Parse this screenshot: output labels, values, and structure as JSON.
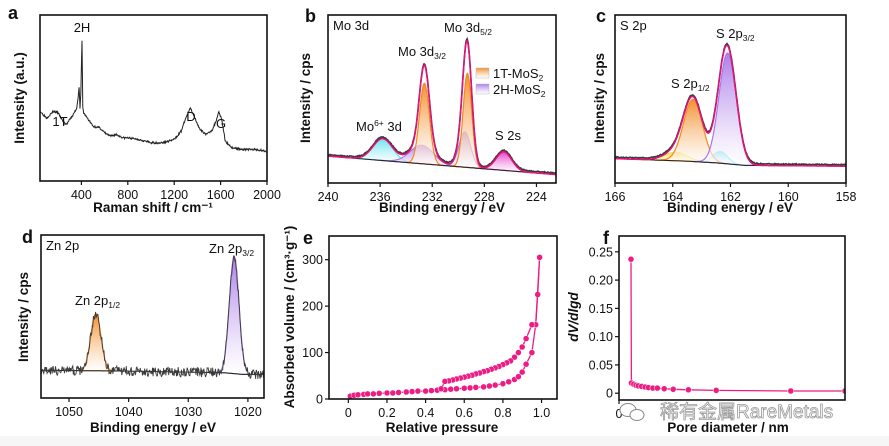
{
  "watermark": "稀有金属RareMetals",
  "colors": {
    "envelope": "#e8107a",
    "data": "#3a3a3a",
    "baseline": "#222222",
    "orange": "#f28a22",
    "purple": "#a878e8",
    "cyan": "#5fe3ec",
    "magenta": "#e23ccc",
    "yellow": "#efe24a",
    "pink": "#ec1c84"
  },
  "chart_data": [
    {
      "panel": "a",
      "type": "line",
      "xlabel": "Raman shift / cm⁻¹",
      "ylabel": "Intensity (a.u.)",
      "xlim": [
        43,
        2000
      ],
      "ylim": [
        0,
        1
      ],
      "xticks": [
        400,
        800,
        1200,
        1600,
        2000
      ],
      "annotations": [
        {
          "text": "2H"
        },
        {
          "text": "1T"
        },
        {
          "text": "D"
        },
        {
          "text": "G"
        }
      ],
      "series": [
        {
          "x": [
            43,
            100,
            160,
            200,
            240,
            270,
            330,
            360,
            380,
            388,
            395,
            405,
            412,
            420,
            450,
            500,
            560,
            600,
            650,
            700,
            760,
            800,
            900,
            1000,
            1100,
            1200,
            1260,
            1300,
            1340,
            1380,
            1420,
            1480,
            1530,
            1560,
            1585,
            1610,
            1640,
            1700,
            1800,
            1900,
            2000
          ],
          "y": [
            0.42,
            0.38,
            0.42,
            0.41,
            0.36,
            0.34,
            0.4,
            0.44,
            0.56,
            0.44,
            0.52,
            0.85,
            0.44,
            0.41,
            0.38,
            0.33,
            0.32,
            0.29,
            0.27,
            0.28,
            0.26,
            0.26,
            0.25,
            0.23,
            0.23,
            0.25,
            0.3,
            0.38,
            0.44,
            0.38,
            0.31,
            0.28,
            0.31,
            0.36,
            0.42,
            0.37,
            0.24,
            0.2,
            0.19,
            0.19,
            0.18
          ]
        }
      ]
    },
    {
      "panel": "b",
      "type": "line",
      "title": "Mo 3d",
      "xlabel": "Binding energy / eV",
      "ylabel": "Intensity / cps",
      "xlim": [
        240,
        222.5
      ],
      "ylim": [
        0,
        1
      ],
      "xticks": [
        240,
        236,
        232,
        228,
        224
      ],
      "annotations": [
        {
          "text": "Mo 3d",
          "sub": "3/2"
        },
        {
          "text": "Mo 3d",
          "sub": "5/2"
        },
        {
          "text": "Mo",
          "sup": "6+",
          "tail": " 3d"
        },
        {
          "text": "S 2s"
        }
      ],
      "legend": [
        {
          "name": "1T-MoS",
          "sub": "2",
          "color": "#f28a22"
        },
        {
          "name": "2H-MoS",
          "sub": "2",
          "color": "#a878e8"
        }
      ],
      "baseline": [
        [
          240,
          0.16
        ],
        [
          222.5,
          0.05
        ]
      ],
      "components": [
        {
          "center": 235.8,
          "amplitude": 0.13,
          "sigma": 0.75,
          "color": "#5fe3ec"
        },
        {
          "center": 232.8,
          "amplitude": 0.11,
          "sigma": 0.9,
          "color": "#a878e8"
        },
        {
          "center": 229.5,
          "amplitude": 0.21,
          "sigma": 0.45,
          "color": "#a878e8"
        },
        {
          "center": 232.6,
          "amplitude": 0.48,
          "sigma": 0.38,
          "color": "#f28a22"
        },
        {
          "center": 229.3,
          "amplitude": 0.56,
          "sigma": 0.33,
          "color": "#f28a22"
        },
        {
          "center": 226.5,
          "amplitude": 0.11,
          "sigma": 0.6,
          "color": "#e23ccc"
        }
      ]
    },
    {
      "panel": "c",
      "type": "line",
      "title": "S 2p",
      "xlabel": "Binding energy / eV",
      "ylabel": "Intensity / cps",
      "xlim": [
        166,
        158
      ],
      "ylim": [
        0,
        1
      ],
      "xticks": [
        166,
        164,
        162,
        160,
        158
      ],
      "annotations": [
        {
          "text": "S 2p",
          "sub": "1/2"
        },
        {
          "text": "S 2p",
          "sub": "3/2"
        }
      ],
      "baseline": [
        [
          166,
          0.145
        ],
        [
          163.5,
          0.13
        ],
        [
          162.5,
          0.12
        ],
        [
          161.5,
          0.105
        ],
        [
          158,
          0.1
        ]
      ],
      "components": [
        {
          "center": 163.9,
          "amplitude": 0.05,
          "sigma": 0.4,
          "color": "#efe24a"
        },
        {
          "center": 162.35,
          "amplitude": 0.07,
          "sigma": 0.25,
          "color": "#5fe3ec"
        },
        {
          "center": 163.3,
          "amplitude": 0.37,
          "sigma": 0.33,
          "color": "#f28a22"
        },
        {
          "center": 162.1,
          "amplitude": 0.66,
          "sigma": 0.3,
          "color": "#a878e8"
        }
      ]
    },
    {
      "panel": "d",
      "type": "line",
      "title": "Zn 2p",
      "xlabel": "Binding energy / eV",
      "ylabel": "Intensity / cps",
      "xlim": [
        1054.7,
        1017.3
      ],
      "ylim": [
        0,
        1
      ],
      "xticks": [
        1050,
        1040,
        1030,
        1020
      ],
      "annotations": [
        {
          "text": "Zn 2p",
          "sub": "1/2"
        },
        {
          "text": "Zn 2p",
          "sub": "3/2"
        }
      ],
      "baseline": [
        [
          1054.7,
          0.17
        ],
        [
          1040,
          0.165
        ],
        [
          1024,
          0.155
        ],
        [
          1021,
          0.145
        ],
        [
          1017.3,
          0.145
        ]
      ],
      "components": [
        {
          "center": 1045.5,
          "amplitude": 0.35,
          "sigma": 0.85,
          "color": "#f28a22"
        },
        {
          "center": 1022.3,
          "amplitude": 0.72,
          "sigma": 0.8,
          "color": "#a878e8"
        }
      ]
    },
    {
      "panel": "e",
      "type": "scatter",
      "xlabel": "Relative pressure",
      "ylabel": "Absorbed volume / (cm³·g⁻¹)",
      "xlim": [
        -0.1,
        1.08
      ],
      "ylim": [
        0,
        351
      ],
      "xticks": [
        0,
        0.2,
        0.4,
        0.6,
        0.8,
        1.0
      ],
      "yticks": [
        0,
        100,
        200,
        300
      ],
      "series": [
        {
          "x": [
            0.01,
            0.03,
            0.05,
            0.08,
            0.1,
            0.13,
            0.16,
            0.2,
            0.23,
            0.26,
            0.3,
            0.33,
            0.36,
            0.4,
            0.43,
            0.46,
            0.5,
            0.53,
            0.56,
            0.6,
            0.63,
            0.66,
            0.7,
            0.73,
            0.76,
            0.8,
            0.83,
            0.86,
            0.88,
            0.9,
            0.92,
            0.95,
            0.97,
            0.98,
            0.99
          ],
          "y": [
            6,
            8,
            9,
            10,
            11,
            11,
            12,
            13,
            13,
            14,
            15,
            16,
            17,
            17,
            18,
            19,
            20,
            21,
            22,
            23,
            24,
            25,
            26,
            28,
            30,
            33,
            37,
            42,
            48,
            58,
            75,
            100,
            160,
            225,
            305
          ]
        },
        {
          "x": [
            0.99,
            0.97,
            0.95,
            0.92,
            0.9,
            0.88,
            0.86,
            0.84,
            0.82,
            0.8,
            0.78,
            0.76,
            0.74,
            0.72,
            0.7,
            0.68,
            0.66,
            0.64,
            0.62,
            0.6,
            0.58,
            0.56,
            0.54,
            0.52,
            0.5,
            0.48
          ],
          "y": [
            305,
            160,
            160,
            130,
            112,
            100,
            90,
            82,
            78,
            74,
            70,
            67,
            64,
            61,
            59,
            56,
            54,
            51,
            49,
            47,
            45,
            43,
            41,
            39,
            38,
            22
          ]
        }
      ]
    },
    {
      "panel": "f",
      "type": "line",
      "xlabel": "Pore diameter / nm",
      "ylabel": "dV/dlgd",
      "xlim": [
        0,
        100
      ],
      "ylim": [
        -0.012,
        0.278
      ],
      "xticks": [
        0
      ],
      "yticks": [
        0,
        0.05,
        0.1,
        0.15,
        0.2,
        0.25
      ],
      "series": [
        {
          "x": [
            5.3,
            5.5,
            6.5,
            7.5,
            8.5,
            10,
            11.5,
            13,
            15,
            17,
            20,
            24,
            30.7,
            43,
            76,
            100
          ],
          "y": [
            0.237,
            0.018,
            0.016,
            0.014,
            0.013,
            0.012,
            0.011,
            0.01,
            0.009,
            0.009,
            0.008,
            0.007,
            0.006,
            0.005,
            0.004,
            0.004
          ]
        }
      ]
    }
  ]
}
